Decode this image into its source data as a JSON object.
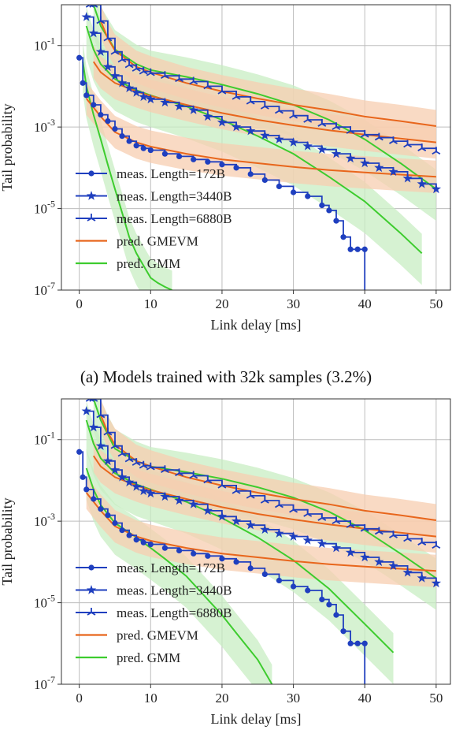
{
  "caption": "(a) Models trained with 32k samples (3.2%)",
  "chart_data": [
    {
      "type": "line",
      "title": "",
      "xlabel": "Link delay [ms]",
      "ylabel": "Tail probability",
      "xlim": [
        -2.5,
        52
      ],
      "ylim_log10": [
        -7,
        0
      ],
      "xticks": [
        "0",
        "10",
        "20",
        "30",
        "40",
        "50"
      ],
      "yticks": [
        "10^-1",
        "10^-3",
        "10^-5",
        "10^-7"
      ],
      "grid": true,
      "legend_position": "bottom-left",
      "colors": {
        "meas": "#1f3fbf",
        "gmevm": "#e8661c",
        "gmm": "#3dcc2e",
        "gmevm_band": "#f7cdb0",
        "gmm_band": "#c8eec3"
      },
      "series": [
        {
          "name": "meas. Length=172B",
          "kind": "meas",
          "marker": "circle",
          "x": [
            0,
            0.5,
            1,
            2,
            3,
            4,
            5,
            6,
            7,
            8,
            9,
            10,
            12,
            14,
            16,
            18,
            20,
            22,
            24,
            26,
            28,
            30,
            32,
            34,
            35,
            36,
            37,
            38,
            39,
            40,
            40
          ],
          "y": [
            0.05,
            0.012,
            0.006,
            0.0035,
            0.002,
            0.0014,
            0.0009,
            0.0006,
            0.00045,
            0.00035,
            0.0003,
            0.00027,
            0.00022,
            0.00019,
            0.00016,
            0.00014,
            0.00012,
            0.0001,
            7e-05,
            5e-05,
            3.5e-05,
            2.5e-05,
            2e-05,
            1.2e-05,
            9e-06,
            5e-06,
            2e-06,
            1e-06,
            1e-06,
            1e-06,
            1e-07
          ]
        },
        {
          "name": "meas. Length=3440B",
          "kind": "meas",
          "marker": "star",
          "x": [
            1,
            2,
            3,
            4,
            5,
            6,
            7,
            8,
            9,
            10,
            12,
            14,
            16,
            18,
            20,
            22,
            24,
            26,
            28,
            30,
            32,
            34,
            36,
            38,
            40,
            42,
            44,
            46,
            48,
            50
          ],
          "y": [
            0.5,
            0.2,
            0.07,
            0.03,
            0.018,
            0.012,
            0.009,
            0.007,
            0.0055,
            0.0048,
            0.004,
            0.0032,
            0.0026,
            0.0018,
            0.0013,
            0.001,
            0.0008,
            0.00062,
            0.0005,
            0.00042,
            0.00034,
            0.00028,
            0.00022,
            0.00017,
            0.00013,
            0.0001,
            8e-05,
            5.5e-05,
            4e-05,
            3e-05
          ]
        },
        {
          "name": "meas. Length=6880B",
          "kind": "meas",
          "marker": "tri",
          "x": [
            1.5,
            2,
            3,
            4,
            5,
            6,
            7,
            8,
            9,
            10,
            12,
            14,
            16,
            18,
            20,
            22,
            24,
            26,
            28,
            30,
            32,
            34,
            36,
            38,
            40,
            42,
            44,
            46,
            48,
            50
          ],
          "y": [
            1,
            1,
            0.4,
            0.15,
            0.07,
            0.045,
            0.033,
            0.027,
            0.023,
            0.021,
            0.018,
            0.015,
            0.013,
            0.01,
            0.0075,
            0.0055,
            0.0042,
            0.0032,
            0.0025,
            0.0019,
            0.0015,
            0.0012,
            0.001,
            0.0008,
            0.00065,
            0.00055,
            0.00045,
            0.00037,
            0.0003,
            0.00025
          ]
        },
        {
          "name": "pred. GMEVM",
          "kind": "gmevm",
          "curves": [
            {
              "x": [
                1,
                3,
                5,
                8,
                10,
                15,
                20,
                25,
                30,
                35,
                40,
                45,
                50
              ],
              "y": [
                0.005,
                0.0018,
                0.00075,
                0.00042,
                0.00033,
                0.00022,
                0.00016,
                0.00013,
                0.000105,
                8.8e-05,
                7.7e-05,
                6.8e-05,
                6e-05
              ]
            },
            {
              "x": [
                2,
                3,
                5,
                8,
                10,
                15,
                20,
                25,
                30,
                35,
                40,
                45,
                50
              ],
              "y": [
                0.04,
                0.022,
                0.012,
                0.0075,
                0.0058,
                0.0035,
                0.0022,
                0.0015,
                0.0011,
                0.00083,
                0.00065,
                0.00052,
                0.00042
              ]
            },
            {
              "x": [
                3,
                4,
                5,
                8,
                10,
                15,
                20,
                25,
                30,
                35,
                40,
                45,
                50
              ],
              "y": [
                0.4,
                0.15,
                0.075,
                0.03,
                0.022,
                0.012,
                0.0075,
                0.005,
                0.0035,
                0.0026,
                0.0018,
                0.0014,
                0.00105
              ]
            }
          ]
        },
        {
          "name": "pred. GMM",
          "kind": "gmm",
          "curves": [
            {
              "x": [
                0.5,
                1,
                2,
                3,
                4,
                5,
                6,
                7,
                8,
                9,
                10,
                11,
                12,
                13
              ],
              "y": [
                0.04,
                0.01,
                0.002,
                0.0005,
                0.00012,
                3e-05,
                8e-06,
                2e-06,
                8e-07,
                4e-07,
                2e-07,
                1.5e-07,
                1.2e-07,
                1e-07
              ]
            },
            {
              "x": [
                1,
                2,
                3,
                5,
                8,
                10,
                15,
                20,
                25,
                30,
                35,
                40,
                45,
                48
              ],
              "y": [
                0.3,
                0.08,
                0.035,
                0.015,
                0.008,
                0.006,
                0.0032,
                0.0015,
                0.0006,
                0.00022,
                6e-05,
                1.5e-05,
                2.5e-06,
                8e-07
              ]
            },
            {
              "x": [
                2,
                3,
                5,
                8,
                10,
                15,
                20,
                25,
                30,
                35,
                40,
                45,
                50
              ],
              "y": [
                1,
                0.3,
                0.08,
                0.035,
                0.025,
                0.017,
                0.011,
                0.0065,
                0.0035,
                0.0015,
                0.0005,
                0.00013,
                3e-05
              ]
            }
          ]
        }
      ]
    },
    {
      "type": "line",
      "title": "",
      "xlabel": "Link delay [ms]",
      "ylabel": "Tail probability",
      "xlim": [
        -2.5,
        52
      ],
      "ylim_log10": [
        -7,
        0
      ],
      "xticks": [
        "0",
        "10",
        "20",
        "30",
        "40",
        "50"
      ],
      "yticks": [
        "10^-1",
        "10^-3",
        "10^-5",
        "10^-7"
      ],
      "grid": true,
      "legend_position": "bottom-left",
      "colors": {
        "meas": "#1f3fbf",
        "gmevm": "#e8661c",
        "gmm": "#3dcc2e",
        "gmevm_band": "#f7cdb0",
        "gmm_band": "#c8eec3"
      },
      "series": [
        {
          "name": "meas. Length=172B",
          "kind": "meas",
          "marker": "circle",
          "x": [
            0,
            0.5,
            1,
            2,
            3,
            4,
            5,
            6,
            7,
            8,
            9,
            10,
            12,
            14,
            16,
            18,
            20,
            22,
            24,
            26,
            28,
            30,
            32,
            34,
            35,
            36,
            37,
            38,
            39,
            40,
            40
          ],
          "y": [
            0.05,
            0.012,
            0.006,
            0.0035,
            0.002,
            0.0014,
            0.0009,
            0.0006,
            0.00045,
            0.00035,
            0.0003,
            0.00027,
            0.00022,
            0.00019,
            0.00016,
            0.00014,
            0.00012,
            0.0001,
            7e-05,
            5e-05,
            3.5e-05,
            2.5e-05,
            2e-05,
            1.2e-05,
            9e-06,
            5e-06,
            2e-06,
            1e-06,
            1e-06,
            1e-06,
            1e-07
          ]
        },
        {
          "name": "meas. Length=3440B",
          "kind": "meas",
          "marker": "star",
          "x": [
            1,
            2,
            3,
            4,
            5,
            6,
            7,
            8,
            9,
            10,
            12,
            14,
            16,
            18,
            20,
            22,
            24,
            26,
            28,
            30,
            32,
            34,
            36,
            38,
            40,
            42,
            44,
            46,
            48,
            50
          ],
          "y": [
            0.5,
            0.2,
            0.07,
            0.03,
            0.018,
            0.012,
            0.009,
            0.007,
            0.0055,
            0.0048,
            0.004,
            0.0032,
            0.0026,
            0.0018,
            0.0013,
            0.001,
            0.0008,
            0.00062,
            0.0005,
            0.00042,
            0.00034,
            0.00028,
            0.00022,
            0.00017,
            0.00013,
            0.0001,
            8e-05,
            5.5e-05,
            4e-05,
            3e-05
          ]
        },
        {
          "name": "meas. Length=6880B",
          "kind": "meas",
          "marker": "tri",
          "x": [
            1.5,
            2,
            3,
            4,
            5,
            6,
            7,
            8,
            9,
            10,
            12,
            14,
            16,
            18,
            20,
            22,
            24,
            26,
            28,
            30,
            32,
            34,
            36,
            38,
            40,
            42,
            44,
            46,
            48,
            50
          ],
          "y": [
            1,
            1,
            0.4,
            0.15,
            0.07,
            0.045,
            0.033,
            0.027,
            0.023,
            0.021,
            0.018,
            0.015,
            0.013,
            0.01,
            0.0075,
            0.0055,
            0.0042,
            0.0032,
            0.0025,
            0.0019,
            0.0015,
            0.0012,
            0.001,
            0.0008,
            0.00065,
            0.00055,
            0.00045,
            0.00037,
            0.0003,
            0.00025
          ]
        },
        {
          "name": "pred. GMEVM",
          "kind": "gmevm",
          "curves": [
            {
              "x": [
                1,
                3,
                5,
                8,
                10,
                15,
                20,
                25,
                30,
                35,
                40,
                45,
                50
              ],
              "y": [
                0.005,
                0.0018,
                0.00075,
                0.00042,
                0.00033,
                0.00022,
                0.00016,
                0.00013,
                0.000105,
                8.8e-05,
                7.7e-05,
                6.8e-05,
                6e-05
              ]
            },
            {
              "x": [
                2,
                3,
                5,
                8,
                10,
                15,
                20,
                25,
                30,
                35,
                40,
                45,
                50
              ],
              "y": [
                0.04,
                0.022,
                0.012,
                0.0075,
                0.0058,
                0.0035,
                0.0022,
                0.0015,
                0.0011,
                0.00083,
                0.00065,
                0.00052,
                0.00042
              ]
            },
            {
              "x": [
                3,
                4,
                5,
                8,
                10,
                15,
                20,
                25,
                30,
                35,
                40,
                45,
                50
              ],
              "y": [
                0.4,
                0.15,
                0.075,
                0.03,
                0.022,
                0.012,
                0.0075,
                0.005,
                0.0035,
                0.0026,
                0.0018,
                0.0014,
                0.00105
              ]
            }
          ]
        },
        {
          "name": "pred. GMM",
          "kind": "gmm",
          "curves": [
            {
              "x": [
                1,
                2,
                3,
                5,
                8,
                10,
                12,
                15,
                18,
                20,
                22,
                25,
                27
              ],
              "y": [
                0.02,
                0.006,
                0.0025,
                0.0009,
                0.0004,
                0.00022,
                0.00012,
                4.5e-05,
                1.2e-05,
                5e-06,
                1.8e-06,
                4e-07,
                1e-07
              ]
            },
            {
              "x": [
                1,
                2,
                3,
                5,
                8,
                10,
                15,
                20,
                25,
                30,
                35,
                40,
                44
              ],
              "y": [
                0.3,
                0.08,
                0.035,
                0.015,
                0.008,
                0.006,
                0.003,
                0.0012,
                0.0004,
                0.00011,
                2.2e-05,
                3e-06,
                6e-07
              ]
            },
            {
              "x": [
                2,
                3,
                5,
                8,
                10,
                15,
                20,
                25,
                30,
                35,
                40,
                45,
                50
              ],
              "y": [
                1,
                0.3,
                0.06,
                0.03,
                0.022,
                0.016,
                0.011,
                0.0068,
                0.0038,
                0.0017,
                0.0006,
                0.00016,
                4e-05
              ]
            }
          ]
        }
      ]
    }
  ]
}
